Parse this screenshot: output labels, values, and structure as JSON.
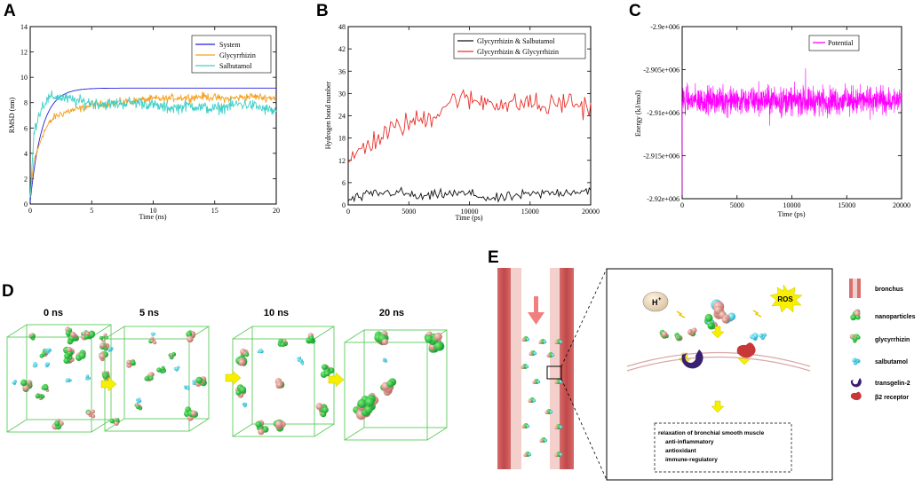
{
  "colors": {
    "system": "#2222dd",
    "glycyrrhizin": "#f5a020",
    "salbutamol": "#40d0c8",
    "hb_salb": "#111111",
    "hb_glyc": "#e8302a",
    "potential": "#ff00ff",
    "arrow_yellow": "#f6f000",
    "bronchus_red": "#d06060",
    "bronchus_light": "#f4d0cc"
  },
  "panels": {
    "a": {
      "label": "A"
    },
    "b": {
      "label": "B"
    },
    "c": {
      "label": "C"
    },
    "d": {
      "label": "D"
    },
    "e": {
      "label": "E"
    }
  },
  "chart_data": [
    {
      "id": "A",
      "type": "line",
      "title": "",
      "xlabel": "Time (ns)",
      "ylabel": "RMSD (nm)",
      "xlim": [
        0,
        20
      ],
      "ylim": [
        0,
        14
      ],
      "xticks": [
        0,
        5,
        10,
        15,
        20
      ],
      "yticks": [
        0,
        2,
        4,
        6,
        8,
        10,
        12,
        14
      ],
      "legend_position": "top-right",
      "series": [
        {
          "name": "System",
          "color": "#2222dd",
          "shape": "saturation",
          "start": 0.2,
          "plateau": 9.15,
          "rate": 1.05
        },
        {
          "name": "Glycyrrhizin",
          "color": "#f5a020",
          "shape": "noisy",
          "x": [
            0,
            0.3,
            0.6,
            1,
            1.5,
            2,
            3,
            4,
            5,
            6,
            7,
            8,
            9,
            10,
            11,
            12,
            13,
            14,
            15,
            16,
            17,
            18,
            19,
            20
          ],
          "y": [
            0.5,
            3.5,
            4.2,
            5.5,
            6.3,
            6.9,
            7.3,
            7.5,
            7.8,
            7.9,
            8.0,
            8.1,
            8.2,
            8.3,
            8.3,
            8.4,
            8.4,
            8.5,
            8.4,
            8.3,
            8.4,
            8.5,
            8.4,
            8.4
          ],
          "noise": 0.45
        },
        {
          "name": "Salbutamol",
          "color": "#40d0c8",
          "shape": "noisy",
          "x": [
            0,
            0.3,
            0.6,
            1,
            1.5,
            2,
            3,
            4,
            5,
            6,
            7,
            8,
            9,
            10,
            11,
            12,
            13,
            14,
            15,
            16,
            17,
            18,
            19,
            20
          ],
          "y": [
            0.5,
            5.5,
            6.8,
            7.8,
            8.3,
            8.5,
            8.3,
            8.1,
            8.0,
            7.9,
            7.9,
            8.0,
            8.0,
            7.8,
            7.6,
            7.6,
            7.8,
            7.6,
            7.5,
            7.7,
            7.9,
            7.8,
            7.5,
            7.3
          ],
          "noise": 0.7
        }
      ]
    },
    {
      "id": "B",
      "type": "line",
      "title": "",
      "xlabel": "Time (ps)",
      "ylabel": "Hydrogen bond number",
      "xlim": [
        0,
        20000
      ],
      "ylim": [
        0,
        48
      ],
      "xticks": [
        0,
        5000,
        10000,
        15000,
        20000
      ],
      "yticks": [
        0,
        6,
        12,
        18,
        24,
        30,
        36,
        42,
        48
      ],
      "legend_position": "top-right",
      "series": [
        {
          "name": "Glycyrrhizin & Salbutamol",
          "color": "#111111",
          "shape": "noisy",
          "x": [
            0,
            2000,
            4000,
            6000,
            8000,
            10000,
            12000,
            14000,
            16000,
            18000,
            20000
          ],
          "y": [
            1.2,
            3.0,
            3.5,
            2.0,
            3.0,
            3.0,
            1.5,
            2.5,
            3.0,
            3.5,
            4.0
          ],
          "noise": 2.0
        },
        {
          "name": "Glycyrrhizin & Glycyrrhizin",
          "color": "#e8302a",
          "shape": "noisy",
          "x": [
            0,
            1000,
            2000,
            3000,
            4000,
            5000,
            6000,
            7000,
            8000,
            9000,
            10000,
            11000,
            12000,
            13000,
            14000,
            15000,
            16000,
            17000,
            18000,
            19000,
            20000
          ],
          "y": [
            11,
            15,
            17,
            19,
            21,
            22,
            23,
            24,
            27,
            29,
            28,
            28,
            28,
            27,
            27,
            28,
            26,
            27,
            28,
            27,
            26
          ],
          "noise": 4.5
        }
      ]
    },
    {
      "id": "C",
      "type": "line",
      "title": "",
      "xlabel": "Time (ps)",
      "ylabel": "Energy (kJ/mol)",
      "xlim": [
        0,
        20000
      ],
      "ylim": [
        -2920000,
        -2900000
      ],
      "xticks": [
        0,
        5000,
        10000,
        15000,
        20000
      ],
      "yticks": [
        -2920000,
        -2915000,
        -2910000,
        -2905000,
        -2900000
      ],
      "ytick_labels": [
        "-2.92e+006",
        "-2.915e+006",
        "-2.91e+006",
        "-2.905e+006",
        "-2.9e+006"
      ],
      "legend_position": "top-left",
      "series": [
        {
          "name": "Potential",
          "color": "#ff00ff",
          "shape": "dense",
          "mean": -2908600,
          "noise": 1500,
          "start": -2919800
        }
      ]
    }
  ],
  "panel_d": {
    "frames": [
      {
        "time": "0 ns"
      },
      {
        "time": "5 ns"
      },
      {
        "time": "10 ns"
      },
      {
        "time": "20 ns"
      }
    ]
  },
  "panel_e": {
    "h_plus": "H",
    "h_plus_sup": "+",
    "ros": "ROS",
    "outcomes": [
      "relaxation of  bronchial smooth muscle",
      "anti-inflammatory",
      "antioxidant",
      "immune-regulatory"
    ],
    "legend": [
      {
        "key": "bronchus",
        "label": "bronchus"
      },
      {
        "key": "nanoparticles",
        "label": "nanoparticles"
      },
      {
        "key": "glycyrrhizin",
        "label": "glycyrrhizin"
      },
      {
        "key": "salbutamol",
        "label": "salbutamol"
      },
      {
        "key": "transgelin",
        "label": "transgelin-2"
      },
      {
        "key": "b2",
        "label": "β2 receptor"
      }
    ]
  }
}
